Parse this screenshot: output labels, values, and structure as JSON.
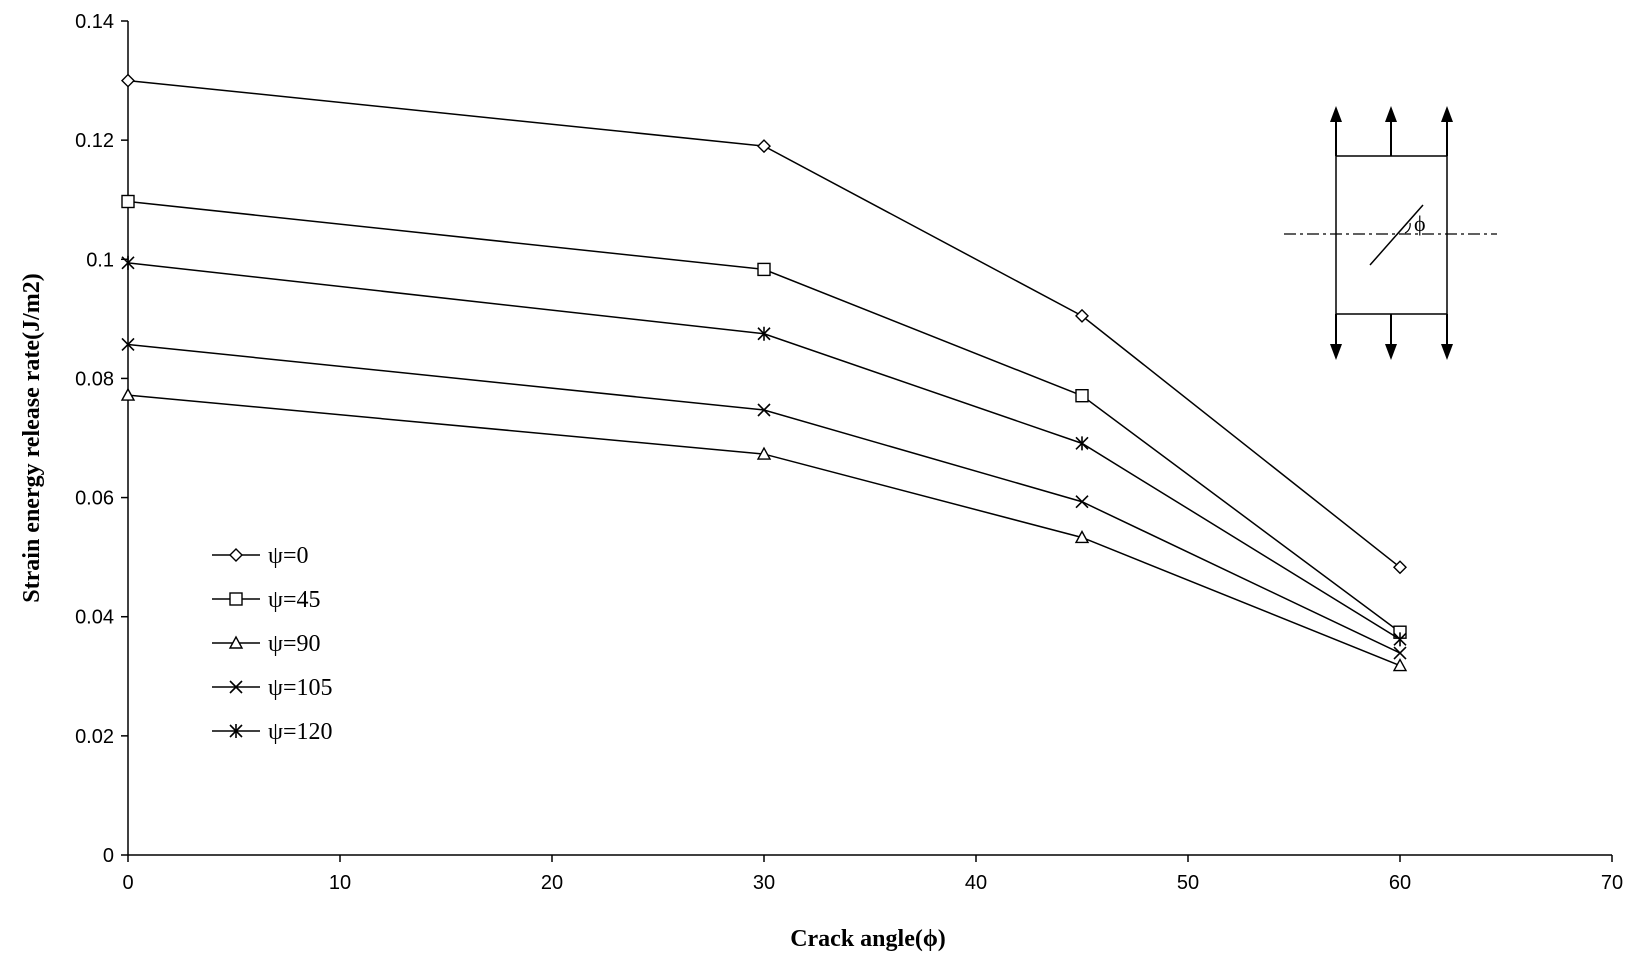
{
  "chart_data": {
    "type": "line",
    "title": "",
    "xlabel": "Crack angle(ϕ)",
    "ylabel": "Strain energy release rate(J/m2)",
    "xlim": [
      0,
      70
    ],
    "ylim": [
      0,
      0.14
    ],
    "x_ticks": [
      "0",
      "10",
      "20",
      "30",
      "40",
      "50",
      "60",
      "70"
    ],
    "y_ticks": [
      "0",
      "0.02",
      "0.04",
      "0.06",
      "0.08",
      "0.1",
      "0.12",
      "0.14"
    ],
    "x": [
      0,
      30,
      45,
      60
    ],
    "grid": false,
    "legend_position": "left-center",
    "series": [
      {
        "name": "ψ=0",
        "marker": "diamond",
        "values": [
          0.13,
          0.119,
          0.0905,
          0.0483
        ]
      },
      {
        "name": "ψ=45",
        "marker": "square",
        "values": [
          0.1097,
          0.0983,
          0.0771,
          0.0374
        ]
      },
      {
        "name": "ψ=90",
        "marker": "triangle",
        "values": [
          0.0772,
          0.0673,
          0.0533,
          0.0318
        ]
      },
      {
        "name": "ψ=105",
        "marker": "x",
        "values": [
          0.0857,
          0.0747,
          0.0593,
          0.0339
        ]
      },
      {
        "name": "ψ=120",
        "marker": "star",
        "values": [
          0.0994,
          0.0875,
          0.0691,
          0.0362
        ]
      }
    ],
    "inset": {
      "angle_label": "ϕ"
    }
  }
}
